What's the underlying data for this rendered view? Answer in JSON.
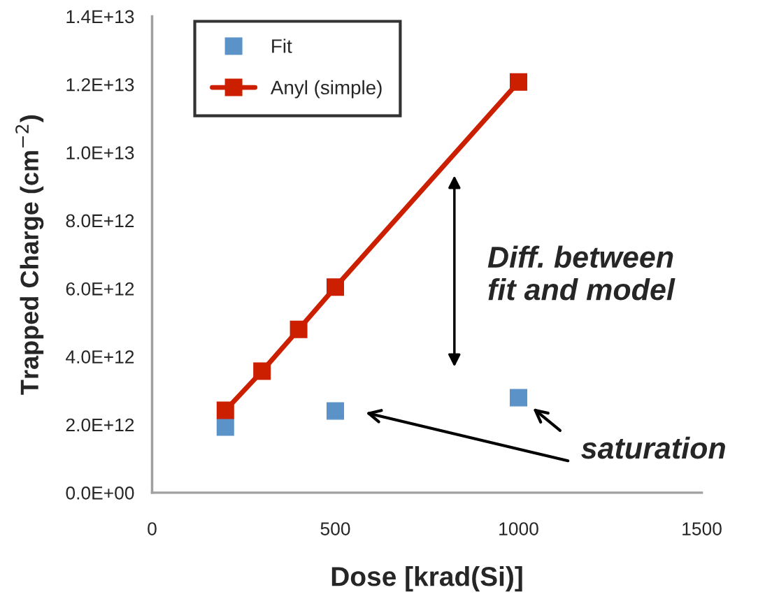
{
  "chart_data": {
    "type": "scatter",
    "xlabel": "Dose [krad(Si)]",
    "ylabel": "Trapped Charge (cm$^{−2}$)",
    "series": [
      {
        "name": "Fit",
        "color": "#5b93c9",
        "x": [
          200,
          500,
          1000
        ],
        "values": [
          1930000000000.0,
          2400000000000.0,
          2790000000000.0
        ]
      },
      {
        "name": "Anyl (simple)",
        "type": "line",
        "color": "#cc1f00",
        "x": [
          200,
          300,
          400,
          500,
          1000
        ],
        "values": [
          2420000000000.0,
          3570000000000.0,
          4800000000000.0,
          6040000000000.0,
          12070000000000.0
        ]
      }
    ],
    "marker": "square",
    "xlim": [
      0,
      1500
    ],
    "xticks": [
      0,
      500,
      1000,
      1500
    ],
    "ylim": [
      0,
      14000000000000.0
    ],
    "yticks": [
      {
        "value": 0,
        "label": "0.0E+00"
      },
      {
        "value": 2000000000000.0,
        "label": "2.0E+12"
      },
      {
        "value": 4000000000000.0,
        "label": "4.0E+12"
      },
      {
        "value": 6000000000000.0,
        "label": "6.0E+12"
      },
      {
        "value": 8000000000000.0,
        "label": "8.0E+12"
      },
      {
        "value": 10000000000000.0,
        "label": "1.0E+13"
      },
      {
        "value": 12000000000000.0,
        "label": "1.2E+13"
      },
      {
        "value": 14000000000000.0,
        "label": "1.4E+13"
      }
    ],
    "grid": false,
    "legend": "top left",
    "annotations": [
      "Diff. between\nfit and model",
      "saturation"
    ]
  }
}
